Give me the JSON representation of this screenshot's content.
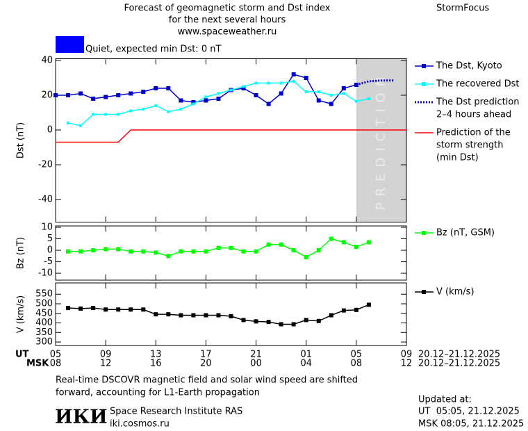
{
  "header": {
    "title_lines": [
      "Forecast of geomagnetic storm and Dst index",
      "for the next several hours",
      "www.spaceweather.ru"
    ],
    "brand": "StormFocus",
    "status": "Quiet, expected min Dst: 0 nT",
    "status_color": "#0000ff"
  },
  "chart_data": [
    {
      "type": "line",
      "ylabel": "Dst (nT)",
      "xlim": [
        0,
        28
      ],
      "xticks": [
        0,
        4,
        8,
        12,
        16,
        20,
        24,
        28
      ],
      "ylim": [
        -53,
        41
      ],
      "yticks": [
        -40,
        -20,
        0,
        20,
        40
      ],
      "prediction_label": "PREDICTION",
      "prediction_range": [
        24,
        28
      ],
      "series": [
        {
          "name": [
            "The Dst, Kyoto"
          ],
          "color": "#0000cc",
          "markers": true,
          "x": [
            0,
            1,
            2,
            3,
            4,
            5,
            6,
            7,
            8,
            9,
            10,
            11,
            12,
            13,
            14,
            15,
            16,
            17,
            18,
            19,
            20,
            21,
            22,
            23,
            24
          ],
          "values": [
            20,
            20,
            21,
            18,
            19,
            20,
            21,
            22,
            24,
            24,
            17,
            16,
            17,
            18,
            23,
            24,
            20,
            15,
            21,
            32,
            30,
            17,
            15,
            24,
            26
          ]
        },
        {
          "name": [
            "The recovered Dst"
          ],
          "color": "#00ffff",
          "markers": true,
          "x": [
            1,
            2,
            3,
            4,
            5,
            6,
            7,
            8,
            9,
            10,
            11,
            12,
            13,
            14,
            15,
            16,
            17,
            18,
            19,
            20,
            21,
            22,
            23,
            24,
            25
          ],
          "values": [
            4,
            2.5,
            9,
            9,
            9,
            11,
            12,
            14,
            10.5,
            12,
            15,
            19,
            21,
            23,
            25,
            27,
            27,
            27,
            28,
            22,
            22,
            20,
            21,
            16.5,
            18
          ]
        },
        {
          "name": [
            "The Dst prediction",
            "2–4 hours ahead"
          ],
          "color": "#0000cc",
          "dashed": true,
          "x": [
            24,
            25,
            26,
            27
          ],
          "values": [
            26,
            28,
            28.5,
            28.5
          ]
        },
        {
          "name": [
            "Prediction of the",
            "storm strength",
            "(min Dst)"
          ],
          "color": "#ff0000",
          "x": [
            0,
            5,
            6,
            28
          ],
          "values": [
            -7,
            -7,
            0,
            0
          ]
        }
      ]
    },
    {
      "type": "line",
      "ylabel": "Bz (nT)",
      "xlim": [
        0,
        28
      ],
      "xticks": [
        0,
        4,
        8,
        12,
        16,
        20,
        24,
        28
      ],
      "ylim": [
        -13,
        10.6
      ],
      "yticks": [
        -10,
        -5,
        0,
        5,
        10
      ],
      "series": [
        {
          "name": [
            "Bz (nT, GSM)"
          ],
          "color": "#00ff00",
          "markers": true,
          "x": [
            1,
            2,
            3,
            4,
            5,
            6,
            7,
            8,
            9,
            10,
            11,
            12,
            13,
            14,
            15,
            16,
            17,
            18,
            19,
            20,
            21,
            22,
            23,
            24,
            25
          ],
          "values": [
            -0.5,
            -0.5,
            0,
            0.5,
            0.5,
            -0.5,
            -0.5,
            -1,
            -2.5,
            -0.5,
            -0.5,
            -0.5,
            1,
            1,
            -0.5,
            -0.5,
            2.5,
            2.5,
            0,
            -3,
            0,
            5,
            3.5,
            1.5,
            3.5
          ]
        }
      ]
    },
    {
      "type": "line",
      "ylabel": "V (km/s)",
      "xlim": [
        0,
        28
      ],
      "xticks": [
        {
          "value": 0,
          "label": "05"
        },
        {
          "value": 4,
          "label": "09"
        },
        {
          "value": 8,
          "label": "13"
        },
        {
          "value": 12,
          "label": "17"
        },
        {
          "value": 16,
          "label": "21"
        },
        {
          "value": 20,
          "label": "01"
        },
        {
          "value": 24,
          "label": "05"
        },
        {
          "value": 28,
          "label": "09"
        }
      ],
      "xticks_msk": [
        "08",
        "12",
        "16",
        "20",
        "00",
        "04",
        "08",
        "12"
      ],
      "ut_label": "UT",
      "msk_label": "MSK",
      "ut_dates": "20.12–21.12.2025",
      "msk_dates": "20.12–21.12.2025",
      "ylim": [
        282,
        609
      ],
      "yticks": [
        300,
        350,
        400,
        450,
        500,
        550
      ],
      "series": [
        {
          "name": [
            "V (km/s)"
          ],
          "color": "#000000",
          "markers": true,
          "x": [
            1,
            2,
            3,
            4,
            5,
            6,
            7,
            8,
            9,
            10,
            11,
            12,
            13,
            14,
            15,
            16,
            17,
            18,
            19,
            20,
            21,
            22,
            23,
            24,
            25
          ],
          "values": [
            478,
            475,
            478,
            470,
            470,
            470,
            470,
            445,
            445,
            440,
            440,
            440,
            440,
            435,
            415,
            408,
            405,
            393,
            393,
            415,
            410,
            440,
            465,
            468,
            495
          ]
        }
      ]
    }
  ],
  "footer": {
    "note_lines": [
      "Real-time DSCOVR magnetic field and solar wind speed are shifted",
      "forward, accounting for L1-Earth propagation"
    ],
    "logo": "ИКИ",
    "institute": "Space Research Institute RAS",
    "site": "iki.cosmos.ru",
    "updated_title": "Updated at:",
    "updated_ut": "UT  05:05, 21.12.2025",
    "updated_msk": "MSK 08:05, 21.12.2025"
  }
}
